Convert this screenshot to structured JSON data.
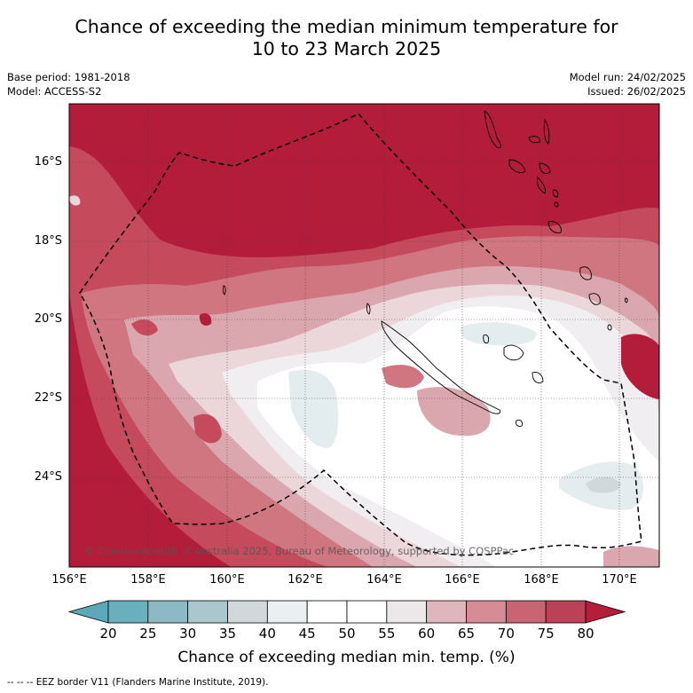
{
  "title_line1": "Chance of exceeding the median minimum temperature for",
  "title_line2": "10 to 23 March 2025",
  "base_period": "Base period: 1981-2018",
  "model": "Model: ACCESS-S2",
  "model_run": "Model run: 24/02/2025",
  "issued": "Issued: 26/02/2025",
  "copyright": "© Commonwealth of Australia 2025, Bureau of Meteorology, supported by COSPPac",
  "lat_labels": [
    "16°S",
    "18°S",
    "20°S",
    "22°S",
    "24°S"
  ],
  "lon_labels": [
    "156°E",
    "158°E",
    "160°E",
    "162°E",
    "164°E",
    "166°E",
    "168°E",
    "170°E"
  ],
  "colorbar": {
    "ticks": [
      "20",
      "25",
      "30",
      "35",
      "40",
      "45",
      "50",
      "55",
      "60",
      "65",
      "70",
      "75",
      "80"
    ],
    "colors": [
      "#5aa8b8",
      "#6aafbe",
      "#8cb9c3",
      "#a9c7cc",
      "#d0d8db",
      "#eaf0f1",
      "#ffffff",
      "#ffffff",
      "#ece8ea",
      "#e0b6bd",
      "#d68c96",
      "#c96573",
      "#bb4256",
      "#b51d3a"
    ],
    "title": "Chance of exceeding median min. temp. (%)"
  },
  "footnote": "--  --  -- EEZ border V11 (Flanders Marine Institute, 2019).",
  "legend_colors": {
    "deep_red": "#b31d3a",
    "red": "#c44a5c",
    "mid_red": "#d07680",
    "pink": "#dba7ae",
    "light_pink": "#ebd6d9",
    "near_white": "#f0eef0",
    "white": "#ffffff",
    "light_blue": "#e3ecee"
  }
}
